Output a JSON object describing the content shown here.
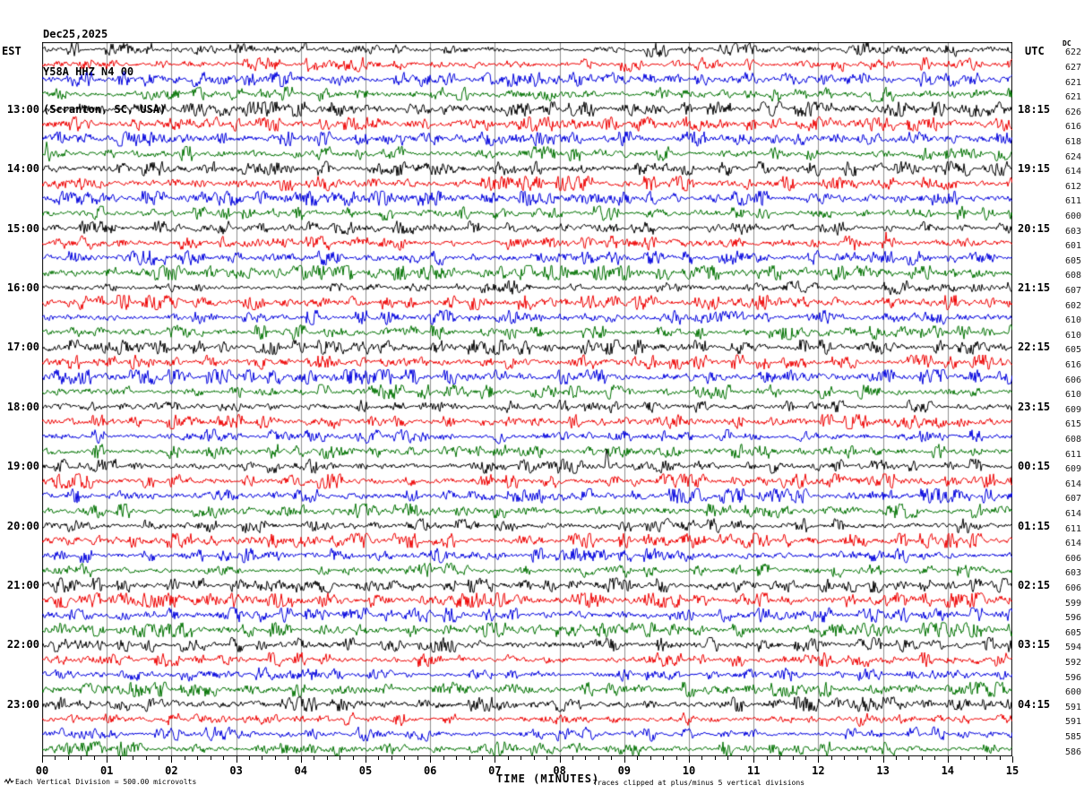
{
  "header": {
    "date": "Dec25,2025",
    "station": "Y58A HHZ N4 00",
    "location": "(Scranton, SC, USA)"
  },
  "axis": {
    "left_header": "EST",
    "right_header": "UTC",
    "dc_header": "DC",
    "x_axis_label": "TIME (MINUTES)",
    "x_tick_labels": [
      "00",
      "01",
      "02",
      "03",
      "04",
      "05",
      "06",
      "07",
      "08",
      "09",
      "10",
      "11",
      "12",
      "13",
      "14",
      "15"
    ]
  },
  "footer": {
    "scale_note": "Each Vertical Division =  500.00 microvolts",
    "clip_note": "Traces clipped at plus/minus 5 vertical divisions"
  },
  "chart_data": {
    "type": "line",
    "subtype": "helicorder-seismogram",
    "title": "Y58A HHZ N4 00 (Scranton, SC, USA) Dec25,2025",
    "xlabel": "TIME (MINUTES)",
    "x_range_minutes": [
      0,
      15
    ],
    "x_major_tick_minutes": 1,
    "x_minor_ticks_per_minute": 5,
    "rows_count": 48,
    "row_duration_minutes": 15,
    "left_axis_timezone": "EST",
    "right_axis_timezone": "UTC",
    "vertical_division": "500.00 microvolts",
    "clipping": "plus/minus 5 vertical divisions",
    "grid": {
      "vertical_lines": true,
      "color": "#8f8f8f"
    },
    "palette": {
      "black": "#000000",
      "red": "#ee0000",
      "blue": "#0000dd",
      "green": "#007200"
    },
    "rows": [
      {
        "color": "black",
        "dc": 622
      },
      {
        "color": "red",
        "dc": 627
      },
      {
        "color": "blue",
        "dc": 621
      },
      {
        "color": "green",
        "dc": 621
      },
      {
        "color": "black",
        "dc": 626,
        "est": "13:00",
        "utc": "18:15"
      },
      {
        "color": "red",
        "dc": 616
      },
      {
        "color": "blue",
        "dc": 618
      },
      {
        "color": "green",
        "dc": 624
      },
      {
        "color": "black",
        "dc": 614,
        "est": "14:00",
        "utc": "19:15"
      },
      {
        "color": "red",
        "dc": 612
      },
      {
        "color": "blue",
        "dc": 611
      },
      {
        "color": "green",
        "dc": 600
      },
      {
        "color": "black",
        "dc": 603,
        "est": "15:00",
        "utc": "20:15"
      },
      {
        "color": "red",
        "dc": 601
      },
      {
        "color": "blue",
        "dc": 605
      },
      {
        "color": "green",
        "dc": 608
      },
      {
        "color": "black",
        "dc": 607,
        "est": "16:00",
        "utc": "21:15"
      },
      {
        "color": "red",
        "dc": 602
      },
      {
        "color": "blue",
        "dc": 610
      },
      {
        "color": "green",
        "dc": 610
      },
      {
        "color": "black",
        "dc": 605,
        "est": "17:00",
        "utc": "22:15"
      },
      {
        "color": "red",
        "dc": 616
      },
      {
        "color": "blue",
        "dc": 606
      },
      {
        "color": "green",
        "dc": 610
      },
      {
        "color": "black",
        "dc": 609,
        "est": "18:00",
        "utc": "23:15"
      },
      {
        "color": "red",
        "dc": 615
      },
      {
        "color": "blue",
        "dc": 608
      },
      {
        "color": "green",
        "dc": 611
      },
      {
        "color": "black",
        "dc": 609,
        "est": "19:00",
        "utc": "00:15"
      },
      {
        "color": "red",
        "dc": 614
      },
      {
        "color": "blue",
        "dc": 607
      },
      {
        "color": "green",
        "dc": 614
      },
      {
        "color": "black",
        "dc": 611,
        "est": "20:00",
        "utc": "01:15"
      },
      {
        "color": "red",
        "dc": 614
      },
      {
        "color": "blue",
        "dc": 606
      },
      {
        "color": "green",
        "dc": 603
      },
      {
        "color": "black",
        "dc": 606,
        "est": "21:00",
        "utc": "02:15"
      },
      {
        "color": "red",
        "dc": 599
      },
      {
        "color": "blue",
        "dc": 596
      },
      {
        "color": "green",
        "dc": 605
      },
      {
        "color": "black",
        "dc": 594,
        "est": "22:00",
        "utc": "03:15"
      },
      {
        "color": "red",
        "dc": 592
      },
      {
        "color": "blue",
        "dc": 596
      },
      {
        "color": "green",
        "dc": 600
      },
      {
        "color": "black",
        "dc": 591,
        "est": "23:00",
        "utc": "04:15"
      },
      {
        "color": "red",
        "dc": 591
      },
      {
        "color": "blue",
        "dc": 585
      },
      {
        "color": "green",
        "dc": 586
      }
    ],
    "notable_spikes": [
      {
        "row": 1,
        "minute": 4.07,
        "height": 15
      },
      {
        "row": 8,
        "minute": 0.07,
        "height": 13
      },
      {
        "row": 8,
        "minute": 0.11,
        "height": -10
      },
      {
        "row": 14,
        "minute": 13.05,
        "height": 9
      },
      {
        "row": 29,
        "minute": 8.73,
        "height": 22
      }
    ]
  }
}
